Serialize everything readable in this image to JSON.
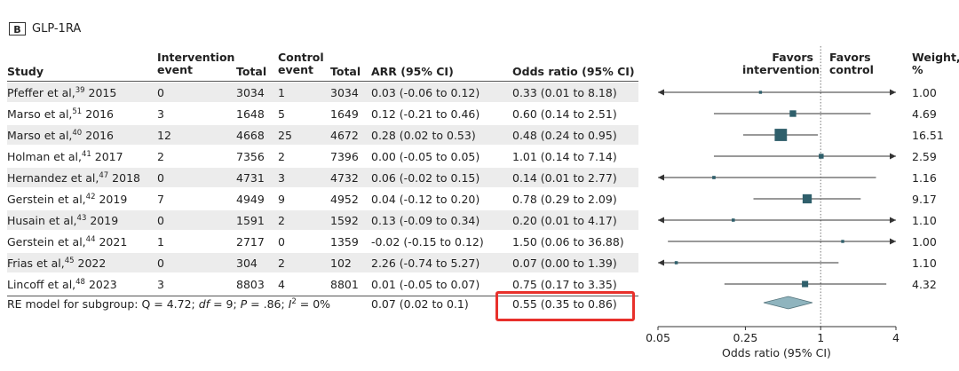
{
  "panel": {
    "letter": "B",
    "title": "GLP-1RA"
  },
  "headers": {
    "study": "Study",
    "intervention_line1": "Intervention",
    "intervention_line2": "event",
    "total1": "Total",
    "control_line1": "Control",
    "control_line2": "event",
    "total2": "Total",
    "arr": "ARR (95% CI)",
    "or": "Odds ratio (95% CI)",
    "favors_int_line1": "Favors",
    "favors_int_line2": "intervention",
    "favors_ctrl_line1": "Favors",
    "favors_ctrl_line2": "control",
    "weight_line1": "Weight,",
    "weight_line2": "%"
  },
  "rows": [
    {
      "study": "Pfeffer et al,",
      "ref": "39",
      "year": "2015",
      "int_event": "0",
      "total1": "3034",
      "ctrl_event": "1",
      "total2": "3034",
      "arr": "0.03 (-0.06 to 0.12)",
      "or": "0.33 (0.01 to 8.18)",
      "weight": "1.00"
    },
    {
      "study": "Marso et al,",
      "ref": "51",
      "year": "2016",
      "int_event": "3",
      "total1": "1648",
      "ctrl_event": "5",
      "total2": "1649",
      "arr": "0.12 (-0.21 to 0.46)",
      "or": "0.60 (0.14 to 2.51)",
      "weight": "4.69"
    },
    {
      "study": "Marso et al,",
      "ref": "40",
      "year": "2016",
      "int_event": "12",
      "total1": "4668",
      "ctrl_event": "25",
      "total2": "4672",
      "arr": "0.28 (0.02 to 0.53)",
      "or": "0.48 (0.24 to 0.95)",
      "weight": "16.51"
    },
    {
      "study": "Holman et al,",
      "ref": "41",
      "year": "2017",
      "int_event": "2",
      "total1": "7356",
      "ctrl_event": "2",
      "total2": "7396",
      "arr": "0.00 (-0.05 to 0.05)",
      "or": "1.01 (0.14 to 7.14)",
      "weight": "2.59"
    },
    {
      "study": "Hernandez et al,",
      "ref": "47",
      "year": "2018",
      "int_event": "0",
      "total1": "4731",
      "ctrl_event": "3",
      "total2": "4732",
      "arr": "0.06 (-0.02 to 0.15)",
      "or": "0.14 (0.01 to 2.77)",
      "weight": "1.16"
    },
    {
      "study": "Gerstein et al,",
      "ref": "42",
      "year": "2019",
      "int_event": "7",
      "total1": "4949",
      "ctrl_event": "9",
      "total2": "4952",
      "arr": "0.04 (-0.12 to 0.20)",
      "or": "0.78 (0.29 to 2.09)",
      "weight": "9.17"
    },
    {
      "study": "Husain et al,",
      "ref": "43",
      "year": "2019",
      "int_event": "0",
      "total1": "1591",
      "ctrl_event": "2",
      "total2": "1592",
      "arr": "0.13 (-0.09 to 0.34)",
      "or": "0.20 (0.01 to 4.17)",
      "weight": "1.10"
    },
    {
      "study": "Gerstein et al,",
      "ref": "44",
      "year": "2021",
      "int_event": "1",
      "total1": "2717",
      "ctrl_event": "0",
      "total2": "1359",
      "arr": "-0.02 (-0.15 to 0.12)",
      "or": "1.50 (0.06 to 36.88)",
      "weight": "1.00"
    },
    {
      "study": "Frias et al,",
      "ref": "45",
      "year": "2022",
      "int_event": "0",
      "total1": "304",
      "ctrl_event": "2",
      "total2": "102",
      "arr": "2.26 (-0.74 to 5.27)",
      "or": "0.07 (0.00 to 1.39)",
      "weight": "1.10"
    },
    {
      "study": "Lincoff et al,",
      "ref": "48",
      "year": "2023",
      "int_event": "3",
      "total1": "8803",
      "ctrl_event": "4",
      "total2": "8801",
      "arr": "0.01 (-0.05 to 0.07)",
      "or": "0.75 (0.17 to 3.35)",
      "weight": "4.32"
    }
  ],
  "summary": {
    "label_prefix": "RE model for subgroup: Q = 4.72; ",
    "label_df": "df",
    "label_mid1": " = 9; ",
    "label_p": "P",
    "label_mid2": " = .86; ",
    "label_i": "I",
    "label_i_sup": "2",
    "label_end": " = 0%",
    "arr": "0.07 (0.02 to 0.1)",
    "or": "0.55 (0.35 to 0.86)"
  },
  "chart_data": {
    "type": "forest",
    "xscale": "log",
    "xlim": [
      0.05,
      4
    ],
    "ticks": [
      0.05,
      0.25,
      1,
      4
    ],
    "tick_labels": [
      "0.05",
      "0.25",
      "1",
      "4"
    ],
    "xlabel": "Odds ratio (95% CI)",
    "reference_line": 1,
    "studies": [
      {
        "or": 0.33,
        "lo": 0.01,
        "hi": 8.18,
        "weight": 1.0
      },
      {
        "or": 0.6,
        "lo": 0.14,
        "hi": 2.51,
        "weight": 4.69
      },
      {
        "or": 0.48,
        "lo": 0.24,
        "hi": 0.95,
        "weight": 16.51
      },
      {
        "or": 1.01,
        "lo": 0.14,
        "hi": 7.14,
        "weight": 2.59
      },
      {
        "or": 0.14,
        "lo": 0.01,
        "hi": 2.77,
        "weight": 1.16
      },
      {
        "or": 0.78,
        "lo": 0.29,
        "hi": 2.09,
        "weight": 9.17
      },
      {
        "or": 0.2,
        "lo": 0.01,
        "hi": 4.17,
        "weight": 1.1
      },
      {
        "or": 1.5,
        "lo": 0.06,
        "hi": 36.88,
        "weight": 1.0
      },
      {
        "or": 0.07,
        "lo": 0.0,
        "hi": 1.39,
        "weight": 1.1
      },
      {
        "or": 0.75,
        "lo": 0.17,
        "hi": 3.35,
        "weight": 4.32
      }
    ],
    "pooled": {
      "or": 0.55,
      "lo": 0.35,
      "hi": 0.86
    },
    "colors": {
      "marker": "#2f5f6b",
      "diamond": "#8fb4be",
      "line": "#333333"
    }
  }
}
